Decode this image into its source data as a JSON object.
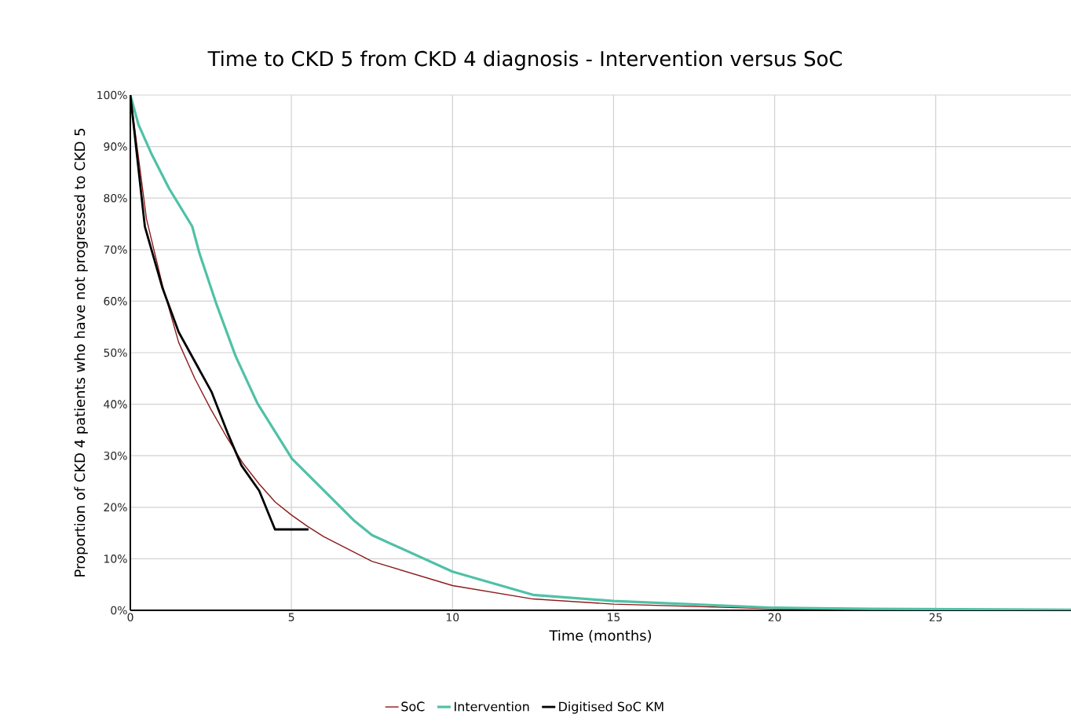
{
  "chart_data": {
    "type": "line",
    "title": "Time to CKD 5 from CKD 4 diagnosis  -  Intervention versus SoC",
    "xlabel": "Time (months)",
    "ylabel": "Proportion of CKD 4 patients who have not progressed to CKD 5",
    "xlim": [
      0,
      29.2
    ],
    "xticks": [
      0,
      5,
      10,
      15,
      20,
      25
    ],
    "ylim": [
      0,
      100
    ],
    "yticks": [
      {
        "value": 0,
        "label": "0%"
      },
      {
        "value": 10,
        "label": "10%"
      },
      {
        "value": 20,
        "label": "20%"
      },
      {
        "value": 30,
        "label": "30%"
      },
      {
        "value": 40,
        "label": "40%"
      },
      {
        "value": 50,
        "label": "50%"
      },
      {
        "value": 60,
        "label": "60%"
      },
      {
        "value": 70,
        "label": "70%"
      },
      {
        "value": 80,
        "label": "80%"
      },
      {
        "value": 90,
        "label": "90%"
      },
      {
        "value": 100,
        "label": "100%"
      }
    ],
    "grid": true,
    "legend": "bottom",
    "marker": "none",
    "line_style": "solid",
    "series": [
      {
        "name": "SoC",
        "color": "#8b1a1a",
        "x": [
          0,
          0.25,
          0.5,
          1,
          1.5,
          2,
          2.5,
          3,
          3.5,
          4,
          4.5,
          5,
          5.5,
          6,
          7.5,
          10,
          12.5,
          15,
          20,
          25,
          29.2
        ],
        "values": [
          100,
          88,
          76,
          63,
          52,
          45,
          39,
          33.5,
          28.5,
          24.5,
          21,
          18.5,
          16.3,
          14.3,
          9.5,
          4.8,
          2.2,
          1.2,
          0.3,
          null,
          0
        ]
      },
      {
        "name": "Intervention",
        "color": "#4fc1a6",
        "x": [
          0,
          0.25,
          0.67,
          1.2,
          1.92,
          2.15,
          2.68,
          3.27,
          3.95,
          5.02,
          6.93,
          7.5,
          10,
          12.5,
          15,
          20,
          23,
          29.2
        ],
        "values": [
          100,
          94.3,
          88.4,
          81.9,
          74.5,
          69.2,
          59.3,
          49.3,
          40.1,
          29.4,
          17.5,
          14.6,
          7.5,
          3.0,
          1.8,
          0.5,
          0.3,
          0.1
        ]
      },
      {
        "name": "Digitised SoC KM",
        "color": "#000000",
        "x": [
          0,
          0.45,
          0.99,
          1.5,
          2.52,
          3.02,
          3.45,
          4.0,
          4.49,
          5.53
        ],
        "values": [
          100,
          74.5,
          62.7,
          54,
          42.4,
          34.4,
          28.1,
          23.2,
          15.7,
          15.7
        ]
      }
    ]
  }
}
